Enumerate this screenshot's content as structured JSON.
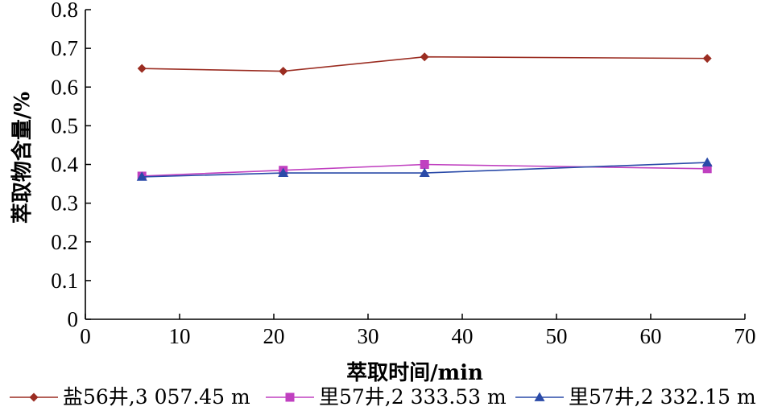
{
  "chart_data": {
    "type": "line",
    "title": "",
    "xlabel": "萃取时间/min",
    "ylabel": "萃取物含量/%",
    "xlim": [
      0,
      70
    ],
    "ylim": [
      0,
      0.8
    ],
    "xticks": [
      "0",
      "10",
      "20",
      "30",
      "40",
      "50",
      "60",
      "70"
    ],
    "yticks": [
      "0",
      "0.1",
      "0.2",
      "0.3",
      "0.4",
      "0.5",
      "0.6",
      "0.7",
      "0.8"
    ],
    "grid": false,
    "legend_position": "bottom",
    "x": [
      6,
      21,
      36,
      66
    ],
    "series": [
      {
        "name": "盐56井,3 057.45 m",
        "values": [
          0.648,
          0.641,
          0.678,
          0.674
        ],
        "color": "#9b2d22",
        "marker": "diamond"
      },
      {
        "name": "里57井,2 333.53 m",
        "values": [
          0.37,
          0.385,
          0.4,
          0.389
        ],
        "color": "#c040c0",
        "marker": "square"
      },
      {
        "name": "里57井,2 332.15 m",
        "values": [
          0.368,
          0.378,
          0.378,
          0.405
        ],
        "color": "#2a4aa8",
        "marker": "triangle"
      }
    ]
  }
}
